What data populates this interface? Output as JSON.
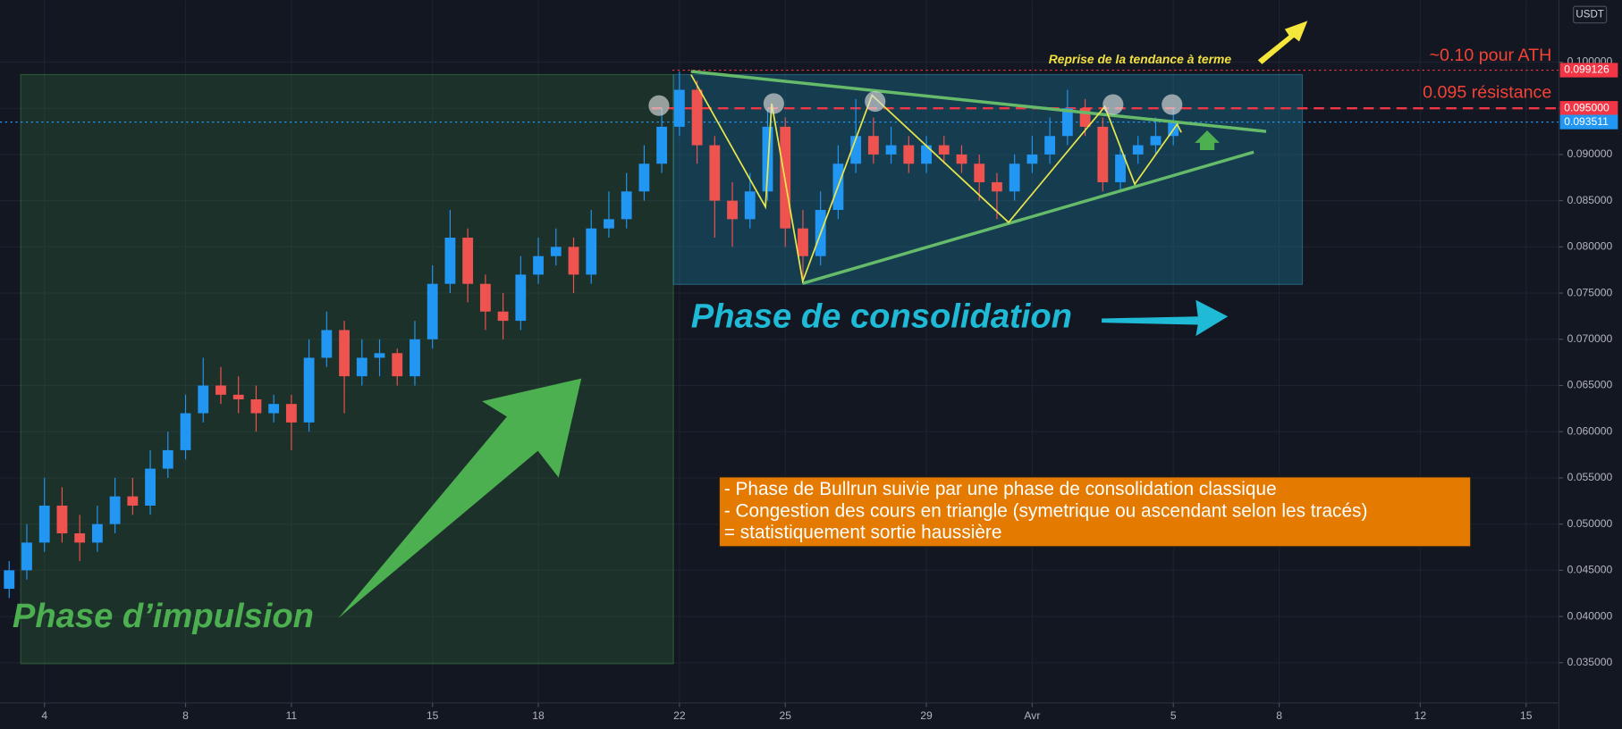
{
  "chart_data": {
    "type": "candlestick",
    "currency": "USDT",
    "up_color": "#2196f3",
    "down_color": "#ef5350",
    "grid": true,
    "x": [
      3,
      3.5,
      4,
      4.5,
      5,
      5.5,
      6,
      6.5,
      7,
      7.5,
      8,
      8.5,
      9,
      9.5,
      10,
      10.5,
      11,
      11.5,
      12,
      12.5,
      13,
      13.5,
      14,
      14.5,
      15,
      15.5,
      16,
      16.5,
      17,
      17.5,
      18,
      18.5,
      19,
      19.5,
      20,
      20.5,
      21,
      21.5,
      22,
      22.5,
      23,
      23.5,
      24,
      24.5,
      25,
      25.5,
      26,
      26.5,
      27,
      27.5,
      28,
      28.5,
      29,
      29.5,
      30,
      30.5,
      31,
      31.5,
      32,
      32.5,
      33,
      33.5,
      34,
      34.5,
      35,
      35.5,
      36
    ],
    "open": [
      0.043,
      0.045,
      0.048,
      0.052,
      0.049,
      0.048,
      0.05,
      0.053,
      0.052,
      0.056,
      0.058,
      0.062,
      0.065,
      0.064,
      0.0635,
      0.062,
      0.063,
      0.061,
      0.068,
      0.071,
      0.066,
      0.068,
      0.0685,
      0.066,
      0.07,
      0.076,
      0.081,
      0.076,
      0.073,
      0.072,
      0.077,
      0.079,
      0.08,
      0.077,
      0.082,
      0.083,
      0.086,
      0.089,
      0.093,
      0.097,
      0.091,
      0.085,
      0.083,
      0.086,
      0.093,
      0.082,
      0.079,
      0.084,
      0.089,
      0.092,
      0.09,
      0.091,
      0.089,
      0.091,
      0.09,
      0.089,
      0.087,
      0.086,
      0.089,
      0.09,
      0.092,
      0.095,
      0.093,
      0.087,
      0.09,
      0.091,
      0.092
    ],
    "high": [
      0.046,
      0.05,
      0.055,
      0.054,
      0.051,
      0.052,
      0.055,
      0.055,
      0.058,
      0.06,
      0.064,
      0.068,
      0.067,
      0.066,
      0.065,
      0.064,
      0.064,
      0.07,
      0.073,
      0.072,
      0.07,
      0.07,
      0.069,
      0.072,
      0.078,
      0.084,
      0.082,
      0.077,
      0.075,
      0.079,
      0.081,
      0.082,
      0.081,
      0.084,
      0.086,
      0.088,
      0.091,
      0.095,
      0.099,
      0.098,
      0.092,
      0.087,
      0.088,
      0.095,
      0.094,
      0.084,
      0.086,
      0.091,
      0.096,
      0.094,
      0.093,
      0.092,
      0.092,
      0.092,
      0.091,
      0.09,
      0.088,
      0.09,
      0.092,
      0.094,
      0.097,
      0.096,
      0.094,
      0.091,
      0.092,
      0.094,
      0.095
    ],
    "low": [
      0.042,
      0.044,
      0.047,
      0.048,
      0.046,
      0.047,
      0.049,
      0.051,
      0.051,
      0.055,
      0.057,
      0.061,
      0.063,
      0.062,
      0.06,
      0.061,
      0.058,
      0.06,
      0.067,
      0.062,
      0.065,
      0.066,
      0.065,
      0.065,
      0.069,
      0.075,
      0.074,
      0.071,
      0.07,
      0.071,
      0.076,
      0.078,
      0.075,
      0.076,
      0.081,
      0.082,
      0.085,
      0.088,
      0.092,
      0.089,
      0.081,
      0.08,
      0.082,
      0.085,
      0.08,
      0.076,
      0.078,
      0.083,
      0.088,
      0.089,
      0.089,
      0.088,
      0.088,
      0.089,
      0.088,
      0.085,
      0.083,
      0.085,
      0.088,
      0.089,
      0.091,
      0.092,
      0.086,
      0.086,
      0.089,
      0.09,
      0.091
    ],
    "close": [
      0.045,
      0.048,
      0.052,
      0.049,
      0.048,
      0.05,
      0.053,
      0.052,
      0.056,
      0.058,
      0.062,
      0.065,
      0.064,
      0.0635,
      0.062,
      0.063,
      0.061,
      0.068,
      0.071,
      0.066,
      0.068,
      0.0685,
      0.066,
      0.07,
      0.076,
      0.081,
      0.076,
      0.073,
      0.072,
      0.077,
      0.079,
      0.08,
      0.077,
      0.082,
      0.083,
      0.086,
      0.089,
      0.093,
      0.097,
      0.091,
      0.085,
      0.083,
      0.086,
      0.093,
      0.082,
      0.079,
      0.084,
      0.089,
      0.092,
      0.09,
      0.091,
      0.089,
      0.091,
      0.09,
      0.089,
      0.087,
      0.086,
      0.089,
      0.09,
      0.092,
      0.095,
      0.093,
      0.087,
      0.09,
      0.091,
      0.092,
      0.0935
    ],
    "xlim": [
      2.74,
      46.93
    ],
    "ylim": [
      0.03064,
      0.1067
    ],
    "xticks": [
      4,
      8,
      11,
      15,
      18,
      22,
      25,
      29,
      {
        "value": 32,
        "label": "Avr"
      },
      {
        "value": 36,
        "label": "5"
      },
      {
        "value": 39,
        "label": "8"
      },
      {
        "value": 43,
        "label": "12"
      },
      {
        "value": 46,
        "label": "15"
      }
    ],
    "yticks": [
      {
        "value": 0.035,
        "label": "0.035000"
      },
      {
        "value": 0.04,
        "label": "0.040000"
      },
      {
        "value": 0.045,
        "label": "0.045000"
      },
      {
        "value": 0.05,
        "label": "0.050000"
      },
      {
        "value": 0.055,
        "label": "0.055000"
      },
      {
        "value": 0.06,
        "label": "0.060000"
      },
      {
        "value": 0.065,
        "label": "0.065000"
      },
      {
        "value": 0.07,
        "label": "0.070000"
      },
      {
        "value": 0.075,
        "label": "0.075000"
      },
      {
        "value": 0.08,
        "label": "0.080000"
      },
      {
        "value": 0.085,
        "label": "0.085000"
      },
      {
        "value": 0.09,
        "label": "0.090000"
      },
      {
        "value": 0.095,
        "label": "0.095000"
      },
      {
        "value": 0.1,
        "label": "0.100000"
      }
    ],
    "price_lines": [
      {
        "value": 0.099126,
        "label": "0.099126",
        "color": "#f23645",
        "style": "dotted"
      },
      {
        "value": 0.095,
        "label": "0.095000",
        "color": "#f23645",
        "style": "dashed"
      },
      {
        "value": 0.093511,
        "label": "0.093511",
        "color": "#2196f3",
        "style": "dotted"
      }
    ],
    "annotations": {
      "trend_resumption": "Reprise de la tendance à terme",
      "ath": "~0.10 pour ATH",
      "resistance": "0.095 résistance",
      "consolidation": "Phase de consolidation",
      "impulse": "Phase d’impulsion",
      "note_lines": [
        "- Phase de Bullrun suivie par une phase de consolidation classique",
        "- Congestion des cours en triangle (symetrique ou ascendant selon les tracés)",
        "= statistiquement sortie haussière"
      ]
    }
  }
}
